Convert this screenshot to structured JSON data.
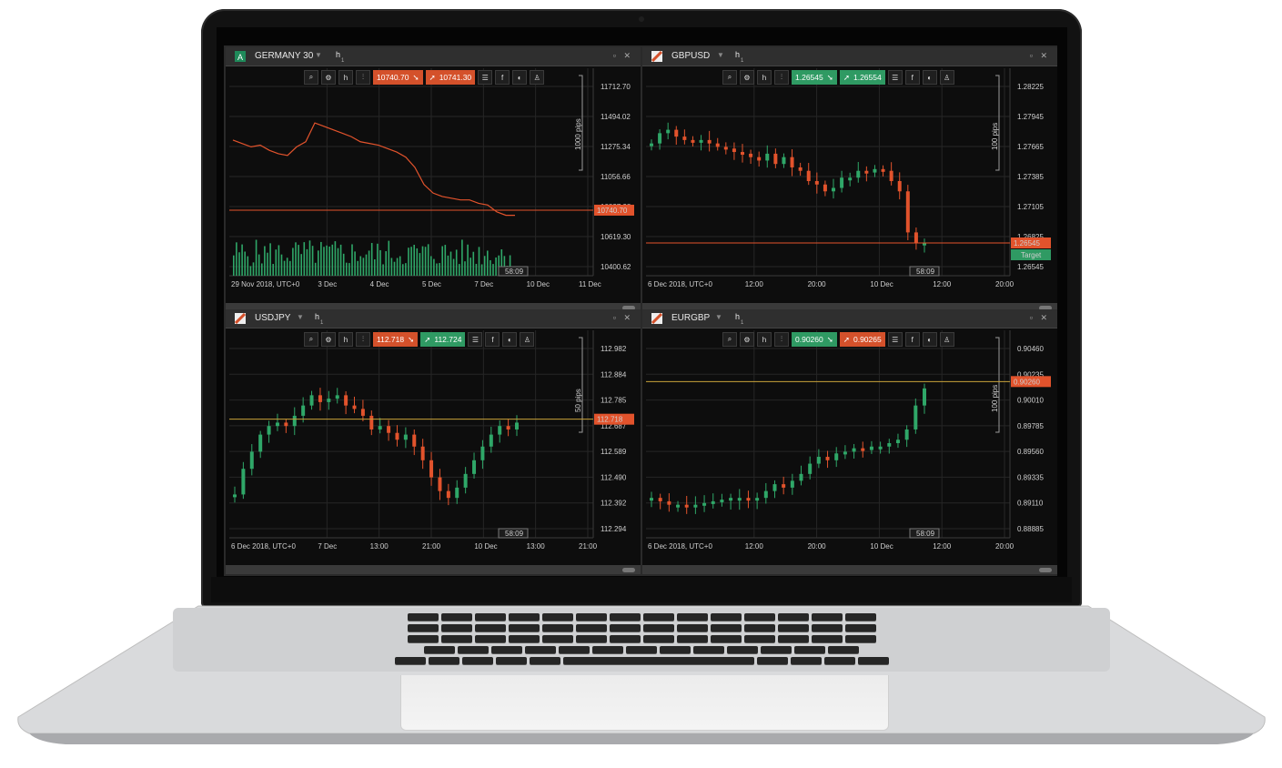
{
  "colors": {
    "up": "#2fa768",
    "down": "#e2532c",
    "line": "#e2532c",
    "grid": "#262626",
    "axis": "#9a9a9a"
  },
  "panels": [
    {
      "symbol": "GERMANY 30",
      "logo": "A",
      "tf": "h",
      "tf_sub": "1",
      "sell": "10740.70",
      "buy": "10741.30",
      "y_ticks": [
        "11712.70",
        "11494.02",
        "11275.34",
        "11056.66",
        "10837.98",
        "10619.30",
        "10400.62"
      ],
      "x_ticks": [
        "29 Nov 2018, UTC+0",
        "3 Dec",
        "4 Dec",
        "5 Dec",
        "7 Dec",
        "10 Dec",
        "11 Dec"
      ],
      "pips": "1000 pips",
      "current_label": "10740.70",
      "time_badge": "58:09"
    },
    {
      "symbol": "GBPUSD",
      "logo": "Z",
      "tf": "h",
      "tf_sub": "1",
      "sell": "1.26545",
      "buy": "1.26554",
      "y_ticks": [
        "1.28225",
        "1.27945",
        "1.27665",
        "1.27385",
        "1.27105",
        "1.26825",
        "1.26545"
      ],
      "x_ticks": [
        "6 Dec 2018, UTC+0",
        "12:00",
        "20:00",
        "10 Dec",
        "12:00",
        "20:00"
      ],
      "pips": "100 pips",
      "current_label": "1.26545",
      "target_label": "Target",
      "time_badge": "58:09"
    },
    {
      "symbol": "USDJPY",
      "logo": "Z",
      "tf": "h",
      "tf_sub": "1",
      "sell": "112.718",
      "buy": "112.724",
      "y_ticks": [
        "112.982",
        "112.884",
        "112.785",
        "112.687",
        "112.589",
        "112.490",
        "112.392",
        "112.294"
      ],
      "x_ticks": [
        "6 Dec 2018, UTC+0",
        "7 Dec",
        "13:00",
        "21:00",
        "10 Dec",
        "13:00",
        "21:00"
      ],
      "pips": "50 pips",
      "current_label": "112.718",
      "time_badge": "58:09"
    },
    {
      "symbol": "EURGBP",
      "logo": "Z",
      "tf": "h",
      "tf_sub": "1",
      "sell": "0.90260",
      "buy": "0.90265",
      "y_ticks": [
        "0.90460",
        "0.90235",
        "0.90010",
        "0.89785",
        "0.89560",
        "0.89335",
        "0.89110",
        "0.88885"
      ],
      "x_ticks": [
        "6 Dec 2018, UTC+0",
        "12:00",
        "20:00",
        "10 Dec",
        "12:00",
        "20:00"
      ],
      "pips": "100 pips",
      "current_label": "0.90260",
      "time_badge": "58:09"
    }
  ]
}
